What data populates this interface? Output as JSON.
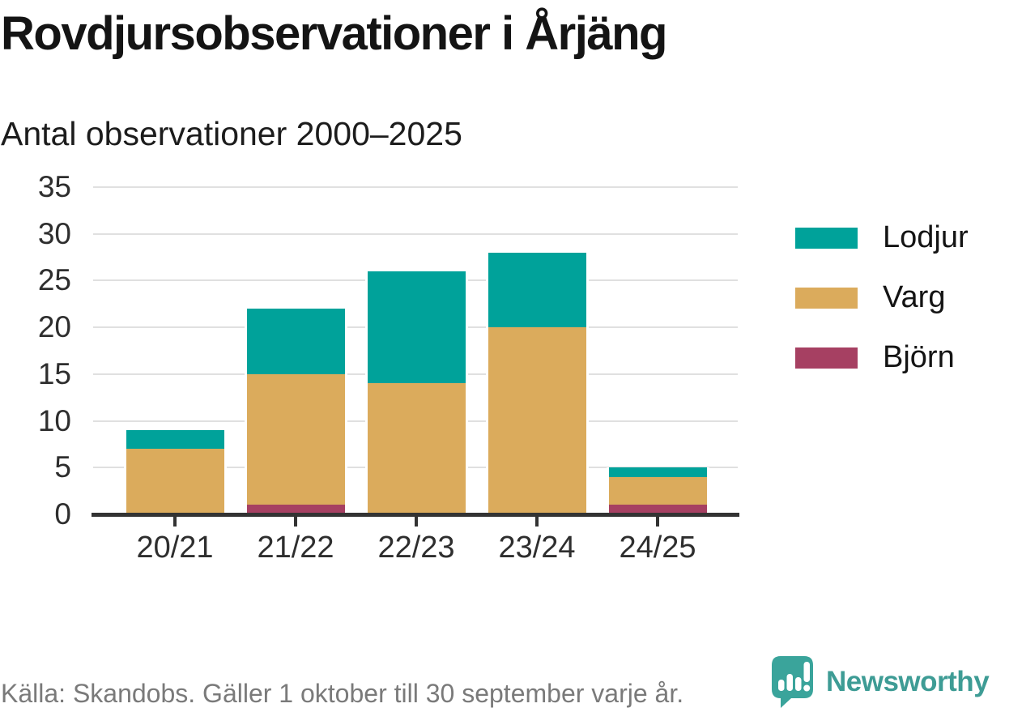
{
  "header": {
    "title": "Rovdjursobservationer i Årjäng",
    "subtitle": "Antal observationer 2000–2025"
  },
  "footer": {
    "source": "Källa: Skandobs. Gäller 1 oktober till 30 september varje år.",
    "brand_name": "Newsworthy"
  },
  "colors": {
    "lodjur": "#00a29a",
    "varg": "#dbab5c",
    "bjorn": "#a64062",
    "axis": "#333333",
    "gridline": "#e0e0e0",
    "brand_teal": "#3e9c95",
    "source_gray": "#7a7a7a"
  },
  "chart_data": {
    "type": "bar",
    "stacked": true,
    "title": "Rovdjursobservationer i Årjäng",
    "subtitle": "Antal observationer 2000–2025",
    "categories": [
      "20/21",
      "21/22",
      "22/23",
      "23/24",
      "24/25"
    ],
    "series": [
      {
        "name": "Björn",
        "color": "#a64062",
        "values": [
          0,
          1,
          0,
          0,
          1
        ]
      },
      {
        "name": "Varg",
        "color": "#dbab5c",
        "values": [
          7,
          14,
          14,
          20,
          3
        ]
      },
      {
        "name": "Lodjur",
        "color": "#00a29a",
        "values": [
          2,
          7,
          12,
          8,
          1
        ]
      }
    ],
    "totals": [
      9,
      22,
      26,
      28,
      5
    ],
    "xlabel": "",
    "ylabel": "",
    "ylim": [
      0,
      35
    ],
    "yticks": [
      0,
      5,
      10,
      15,
      20,
      25,
      30,
      35
    ],
    "grid": "horizontal",
    "legend_position": "right",
    "legend_order": [
      "Lodjur",
      "Varg",
      "Björn"
    ]
  }
}
